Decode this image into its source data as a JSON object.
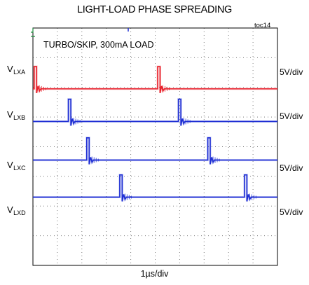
{
  "chart_data": {
    "type": "line",
    "title": "LIGHT-LOAD PHASE SPREADING",
    "figure_id": "toc14",
    "annotation": "TURBO/SKIP, 300mA LOAD",
    "xlabel": "1µs/div",
    "x_divisions": 10,
    "y_divisions": 8,
    "grid": true,
    "series": [
      {
        "name_main": "V",
        "name_sub": "LXA",
        "name": "VLXA",
        "scale": "5V/div",
        "color": "#e8202a",
        "level_div": 5.95,
        "pulse_div": 0.75,
        "pulse_width_div": 0.1,
        "pulse_starts_div": [
          0.05,
          5.1
        ]
      },
      {
        "name_main": "V",
        "name_sub": "LXB",
        "name": "VLXB",
        "scale": "5V/div",
        "color": "#1f2fd4",
        "level_div": 4.85,
        "pulse_div": 0.75,
        "pulse_width_div": 0.1,
        "pulse_starts_div": [
          1.45,
          5.95
        ]
      },
      {
        "name_main": "V",
        "name_sub": "LXC",
        "name": "VLXC",
        "scale": "5V/div",
        "color": "#1f2fd4",
        "level_div": 3.55,
        "pulse_div": 0.75,
        "pulse_width_div": 0.1,
        "pulse_starts_div": [
          2.2,
          7.15
        ]
      },
      {
        "name_main": "V",
        "name_sub": "LXD",
        "name": "VLXD",
        "scale": "5V/div",
        "color": "#1f2fd4",
        "level_div": 2.3,
        "pulse_div": 0.75,
        "pulse_width_div": 0.1,
        "pulse_starts_div": [
          3.55,
          8.65
        ]
      }
    ]
  }
}
